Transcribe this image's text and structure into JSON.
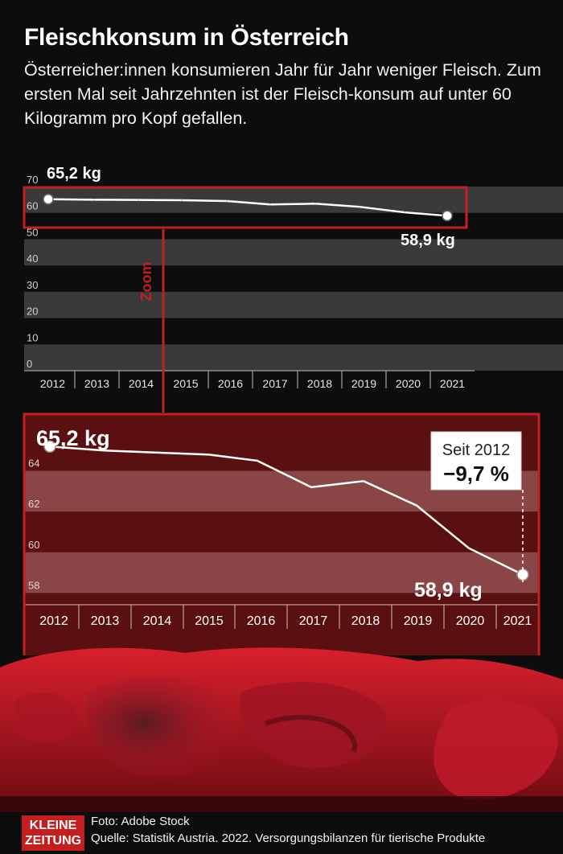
{
  "title": "Fleischkonsum in Österreich",
  "subtitle": "Österreicher:innen konsumieren Jahr für Jahr weniger Fleisch. Zum ersten Mal seit Jahrzehnten ist der Fleisch-konsum auf unter 60 Kilogramm pro Kopf gefallen.",
  "zoom_label": "Zoom",
  "badge": {
    "line1": "Seit 2012",
    "line2": "−9,7 %"
  },
  "labels": {
    "start": "65,2 kg",
    "end": "58,9 kg"
  },
  "footer": {
    "logo_line1": "KLEINE",
    "logo_line2": "ZEITUNG",
    "photo_credit": "Foto: Adobe Stock",
    "source": "Quelle: Statistik Austria. 2022. Versorgungsbilanzen für tierische Produkte"
  },
  "colors": {
    "accent": "#c41e1e",
    "zoom_bg": "#5a1010",
    "line": "#ffffff"
  },
  "chart_data": [
    {
      "type": "line",
      "x": [
        "2012",
        "2013",
        "2014",
        "2015",
        "2016",
        "2017",
        "2018",
        "2019",
        "2020",
        "2021"
      ],
      "series": [
        {
          "values": [
            65.2,
            65.0,
            64.9,
            64.8,
            64.5,
            63.2,
            63.5,
            62.3,
            60.2,
            58.9
          ]
        }
      ],
      "yticks": [
        "0",
        "10",
        "20",
        "30",
        "40",
        "50",
        "60",
        "70"
      ],
      "ylim": [
        0,
        70
      ],
      "grid": "alternating bands",
      "annotations": [
        "65,2 kg",
        "58,9 kg"
      ]
    },
    {
      "type": "line",
      "x": [
        "2012",
        "2013",
        "2014",
        "2015",
        "2016",
        "2017",
        "2018",
        "2019",
        "2020",
        "2021"
      ],
      "series": [
        {
          "values": [
            65.2,
            65.0,
            64.9,
            64.8,
            64.5,
            63.2,
            63.5,
            62.3,
            60.2,
            58.9
          ]
        }
      ],
      "yticks": [
        "58",
        "60",
        "62",
        "64"
      ],
      "ylim": [
        57.5,
        66
      ],
      "grid": "alternating bands",
      "annotations": [
        "65,2 kg",
        "58,9 kg",
        "Seit 2012",
        "−9,7 %"
      ]
    }
  ]
}
